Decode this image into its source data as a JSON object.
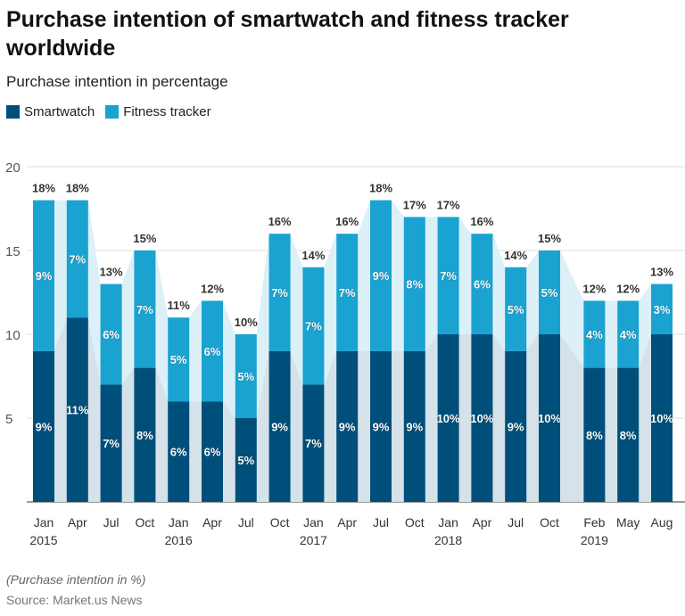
{
  "chart_data": {
    "type": "bar",
    "stacked": true,
    "title": "Purchase intention of smartwatch and fitness tracker worldwide",
    "subtitle": "Purchase intention in percentage",
    "ylim": [
      0,
      20
    ],
    "yticks": [
      5,
      10,
      15,
      20
    ],
    "grid": true,
    "legend": "top-left",
    "categories": [
      "Jan 2015",
      "Apr",
      "Jul",
      "Oct",
      "Jan 2016",
      "Apr",
      "Jul",
      "Oct",
      "Jan 2017",
      "Apr",
      "Jul",
      "Oct",
      "Jan 2018",
      "Apr",
      "Jul",
      "Oct",
      "Feb 2019",
      "May",
      "Aug"
    ],
    "months": [
      0,
      3,
      6,
      9,
      12,
      15,
      18,
      21,
      24,
      27,
      30,
      33,
      36,
      39,
      42,
      45,
      49,
      52,
      55
    ],
    "series": [
      {
        "name": "Smartwatch",
        "color": "#004f7a",
        "values": [
          9,
          11,
          7,
          8,
          6,
          6,
          5,
          9,
          7,
          9,
          9,
          9,
          10,
          10,
          9,
          10,
          8,
          8,
          10
        ]
      },
      {
        "name": "Fitness tracker",
        "color": "#1aa3d1",
        "values": [
          9,
          7,
          6,
          7,
          5,
          6,
          5,
          7,
          7,
          7,
          9,
          8,
          7,
          6,
          5,
          5,
          4,
          4,
          3
        ]
      }
    ],
    "totals": [
      18,
      18,
      13,
      15,
      11,
      12,
      10,
      16,
      14,
      16,
      18,
      17,
      17,
      16,
      14,
      15,
      12,
      12,
      13
    ],
    "value_suffix": "%"
  },
  "note": "(Purchase intention in %)",
  "source": "Source: Market.us News"
}
